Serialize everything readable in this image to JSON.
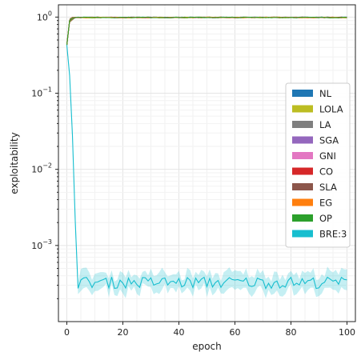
{
  "chart_data": {
    "type": "line",
    "xlabel": "epoch",
    "ylabel": "exploitability",
    "xlim": [
      -3,
      103
    ],
    "ylim": [
      0.0001,
      1.45
    ],
    "yscale": "log",
    "grid": true,
    "legend_placement": "center-right",
    "x_ticks": [
      0,
      20,
      40,
      60,
      80,
      100
    ],
    "x_tick_labels": [
      "0",
      "20",
      "40",
      "60",
      "80",
      "100"
    ],
    "y_ticks": [
      0.001,
      0.01,
      0.1,
      1
    ],
    "y_tick_labels": [
      {
        "base": "10",
        "exp": "−3"
      },
      {
        "base": "10",
        "exp": "−2"
      },
      {
        "base": "10",
        "exp": "−1"
      },
      {
        "base": "10",
        "exp": "0"
      }
    ],
    "series": [
      {
        "name": "NL",
        "color": "#1f77b4",
        "mode": "converge",
        "end": 0.99
      },
      {
        "name": "LOLA",
        "color": "#bcbd22",
        "mode": "converge",
        "end": 0.985
      },
      {
        "name": "LA",
        "color": "#7f7f7f",
        "mode": "converge",
        "end": 0.99
      },
      {
        "name": "SGA",
        "color": "#9467bd",
        "mode": "converge",
        "end": 0.99
      },
      {
        "name": "GNI",
        "color": "#e377c2",
        "mode": "converge",
        "end": 0.99
      },
      {
        "name": "CO",
        "color": "#d62728",
        "mode": "converge",
        "end": 0.99
      },
      {
        "name": "SLA",
        "color": "#8c564b",
        "mode": "converge",
        "end": 0.99
      },
      {
        "name": "EG",
        "color": "#ff7f0e",
        "mode": "converge",
        "end": 0.99
      },
      {
        "name": "OP",
        "color": "#2ca02c",
        "mode": "converge",
        "end": 0.99
      },
      {
        "name": "BRE:3",
        "color": "#17becf",
        "mode": "decay",
        "start": 0.43,
        "floor": 0.00033
      }
    ],
    "epochs": 101
  }
}
